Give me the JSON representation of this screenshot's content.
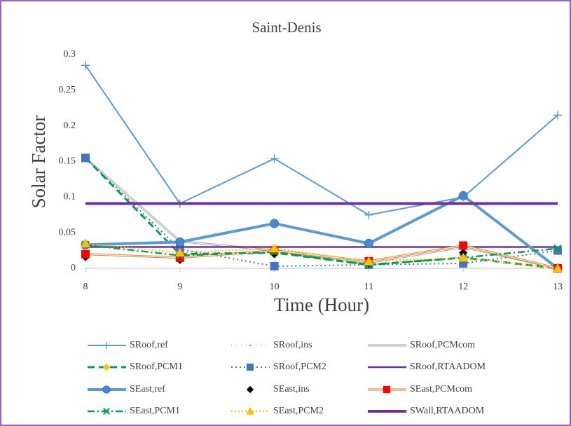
{
  "chart_data": {
    "type": "line",
    "title": "Saint-Denis",
    "x_label": "Time (Hour)",
    "y_label": "Solar Factor",
    "x": [
      8,
      9,
      10,
      11,
      12,
      13
    ],
    "xlim": [
      8,
      13
    ],
    "xticks": [
      8,
      9,
      10,
      11,
      12,
      13
    ],
    "ylim": [
      0,
      0.3
    ],
    "yticks": [
      0,
      0.05,
      0.1,
      0.15,
      0.2,
      0.25,
      0.3
    ],
    "grid": false,
    "legend": "bottom",
    "series": [
      {
        "name": "SRoof,ref",
        "color": "#5b9bd5",
        "width": 2,
        "marker": "plus",
        "marker_color": "#5b9bd5",
        "values": [
          0.285,
          0.091,
          0.154,
          0.075,
          0.1,
          0.215
        ]
      },
      {
        "name": "SRoof,ins",
        "color": "#ed7d31",
        "width": 1,
        "dash": "1 6",
        "marker": "dot",
        "marker_color": "#ed7d31",
        "values": [
          0.02,
          0.015,
          0.022,
          0.008,
          0.03,
          0.001
        ]
      },
      {
        "name": "SRoof,PCMcom",
        "color": "#a5a5a5",
        "width": 3,
        "double": true,
        "marker": "none",
        "values": [
          0.155,
          0.038,
          0.025,
          0.008,
          0.03,
          0.0
        ]
      },
      {
        "name": "SRoof,PCM1",
        "color": "#00a14b",
        "width": 3,
        "dash": "10 6",
        "marker": "diamond",
        "marker_color": "#ffc000",
        "values": [
          0.155,
          0.02,
          0.022,
          0.005,
          0.015,
          0.0
        ]
      },
      {
        "name": "SRoof,PCM2",
        "color": "#4472c4",
        "width": 2,
        "dash": "2 4",
        "marker": "square",
        "marker_color": "#4472c4",
        "values": [
          0.155,
          0.027,
          0.003,
          0.005,
          0.007,
          0.025
        ]
      },
      {
        "name": "SRoof,RTAADOM",
        "color": "#7030a0",
        "width": 2.5,
        "marker": "none",
        "values": [
          0.03,
          0.03,
          0.03,
          0.03,
          0.03,
          0.03
        ]
      },
      {
        "name": "SEast,ref",
        "color": "#5b9bd5",
        "width": 4,
        "marker": "circle",
        "marker_color": "#4a8ad0",
        "values": [
          0.033,
          0.037,
          0.063,
          0.035,
          0.102,
          0.0
        ]
      },
      {
        "name": "SEast,ins",
        "color": "#000000",
        "width": 0,
        "marker": "diamond",
        "marker_color": "#000000",
        "values": [
          0.016,
          0.012,
          0.02,
          0.007,
          0.022,
          0.001
        ]
      },
      {
        "name": "SEast,PCMcom",
        "color": "#ed7d31",
        "width": 3,
        "double": true,
        "marker": "square",
        "marker_color": "#ff0000",
        "values": [
          0.02,
          0.015,
          0.025,
          0.01,
          0.032,
          0.0
        ]
      },
      {
        "name": "SEast,PCM1",
        "color": "#00a14b",
        "width": 2.5,
        "dash": "10 4 2 4",
        "marker": "cross",
        "marker_color": "#00a14b",
        "values": [
          0.033,
          0.018,
          0.023,
          0.005,
          0.015,
          0.028
        ]
      },
      {
        "name": "SEast,PCM2",
        "color": "#ffc000",
        "width": 2,
        "dash": "2 3",
        "marker": "triangle",
        "marker_color": "#ffc000",
        "values": [
          0.035,
          0.022,
          0.028,
          0.01,
          0.015,
          0.0
        ]
      },
      {
        "name": "SWall,RTAADOM",
        "color": "#7030a0",
        "width": 4,
        "marker": "none",
        "values": [
          0.091,
          0.091,
          0.091,
          0.091,
          0.091,
          0.091
        ]
      }
    ]
  }
}
